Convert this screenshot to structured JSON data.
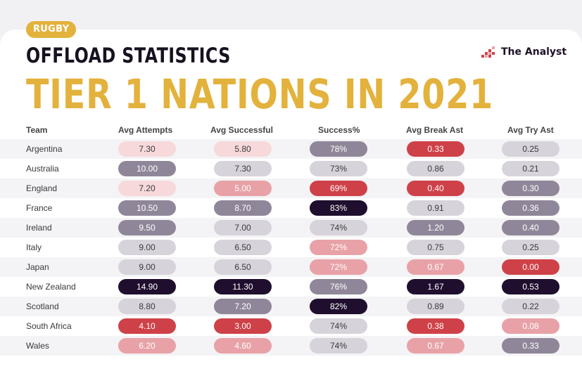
{
  "badge": "RUGBY",
  "title_line1": "OFFLOAD STATISTICS",
  "title_line2": "TIER 1 NATIONS IN 2021",
  "brand": "The Analyst",
  "colors": {
    "gold": "#e3b23c",
    "navy": "#17111f",
    "red": "#cf4148"
  },
  "columns": [
    "Team",
    "Avg Attempts",
    "Avg Successful",
    "Success%",
    "Avg Break Ast",
    "Avg Try Ast"
  ],
  "rows": [
    {
      "team": "Argentina",
      "cells": [
        "7.30",
        "5.80",
        "78%",
        "0.33",
        "0.25"
      ]
    },
    {
      "team": "Australia",
      "cells": [
        "10.00",
        "7.30",
        "73%",
        "0.86",
        "0.21"
      ]
    },
    {
      "team": "England",
      "cells": [
        "7.20",
        "5.00",
        "69%",
        "0.40",
        "0.30"
      ]
    },
    {
      "team": "France",
      "cells": [
        "10.50",
        "8.70",
        "83%",
        "0.91",
        "0.36"
      ]
    },
    {
      "team": "Ireland",
      "cells": [
        "9.50",
        "7.00",
        "74%",
        "1.20",
        "0.40"
      ]
    },
    {
      "team": "Italy",
      "cells": [
        "9.00",
        "6.50",
        "72%",
        "0.75",
        "0.25"
      ]
    },
    {
      "team": "Japan",
      "cells": [
        "9.00",
        "6.50",
        "72%",
        "0.67",
        "0.00"
      ]
    },
    {
      "team": "New Zealand",
      "cells": [
        "14.90",
        "11.30",
        "76%",
        "1.67",
        "0.53"
      ]
    },
    {
      "team": "Scotland",
      "cells": [
        "8.80",
        "7.20",
        "82%",
        "0.89",
        "0.22"
      ]
    },
    {
      "team": "South Africa",
      "cells": [
        "4.10",
        "3.00",
        "74%",
        "0.38",
        "0.08"
      ]
    },
    {
      "team": "Wales",
      "cells": [
        "6.20",
        "4.60",
        "74%",
        "0.67",
        "0.33"
      ]
    }
  ],
  "cell_colors": [
    [
      "#f7d9db",
      "#f7d9db",
      "#8f8799",
      "#cf4148",
      "#d6d3da"
    ],
    [
      "#8f8799",
      "#d6d3da",
      "#d6d3da",
      "#d6d3da",
      "#d6d3da"
    ],
    [
      "#f7d9db",
      "#e8a2a7",
      "#cf4148",
      "#cf4148",
      "#8f8799"
    ],
    [
      "#8f8799",
      "#8f8799",
      "#1f0e2e",
      "#d6d3da",
      "#8f8799"
    ],
    [
      "#8f8799",
      "#d6d3da",
      "#d6d3da",
      "#8f8799",
      "#8f8799"
    ],
    [
      "#d6d3da",
      "#d6d3da",
      "#e8a2a7",
      "#d6d3da",
      "#d6d3da"
    ],
    [
      "#d6d3da",
      "#d6d3da",
      "#e8a2a7",
      "#e8a2a7",
      "#cf4148"
    ],
    [
      "#1f0e2e",
      "#1f0e2e",
      "#8f8799",
      "#1f0e2e",
      "#1f0e2e"
    ],
    [
      "#d6d3da",
      "#8f8799",
      "#1f0e2e",
      "#d6d3da",
      "#d6d3da"
    ],
    [
      "#cf4148",
      "#cf4148",
      "#d6d3da",
      "#cf4148",
      "#e8a2a7"
    ],
    [
      "#e8a2a7",
      "#e8a2a7",
      "#d6d3da",
      "#e8a2a7",
      "#8f8799"
    ]
  ]
}
